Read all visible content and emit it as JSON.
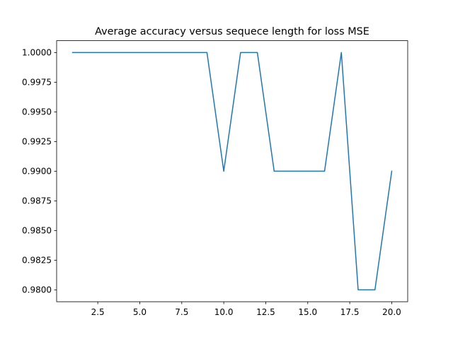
{
  "chart_data": {
    "type": "line",
    "title": "Average accuracy versus sequece length for loss MSE",
    "xlabel": "",
    "ylabel": "",
    "x": [
      1,
      2,
      3,
      4,
      5,
      6,
      7,
      8,
      9,
      10,
      11,
      12,
      13,
      14,
      15,
      16,
      17,
      18,
      19,
      20
    ],
    "series": [
      {
        "name": "",
        "color": "#1f77b4",
        "values": [
          1.0,
          1.0,
          1.0,
          1.0,
          1.0,
          1.0,
          1.0,
          1.0,
          1.0,
          0.99,
          1.0,
          1.0,
          0.99,
          0.99,
          0.99,
          0.99,
          1.0,
          0.98,
          0.98,
          0.99
        ]
      }
    ],
    "xlim": [
      0.05,
      20.95
    ],
    "ylim": [
      0.979,
      1.001
    ],
    "xticks": [
      2.5,
      5.0,
      7.5,
      10.0,
      12.5,
      15.0,
      17.5,
      20.0
    ],
    "xtick_labels": [
      "2.5",
      "5.0",
      "7.5",
      "10.0",
      "12.5",
      "15.0",
      "17.5",
      "20.0"
    ],
    "yticks": [
      0.98,
      0.9825,
      0.985,
      0.9875,
      0.99,
      0.9925,
      0.995,
      0.9975,
      1.0
    ],
    "ytick_labels": [
      "0.9800",
      "0.9825",
      "0.9850",
      "0.9875",
      "0.9900",
      "0.9925",
      "0.9950",
      "0.9975",
      "1.0000"
    ],
    "grid": false,
    "legend": "none"
  }
}
